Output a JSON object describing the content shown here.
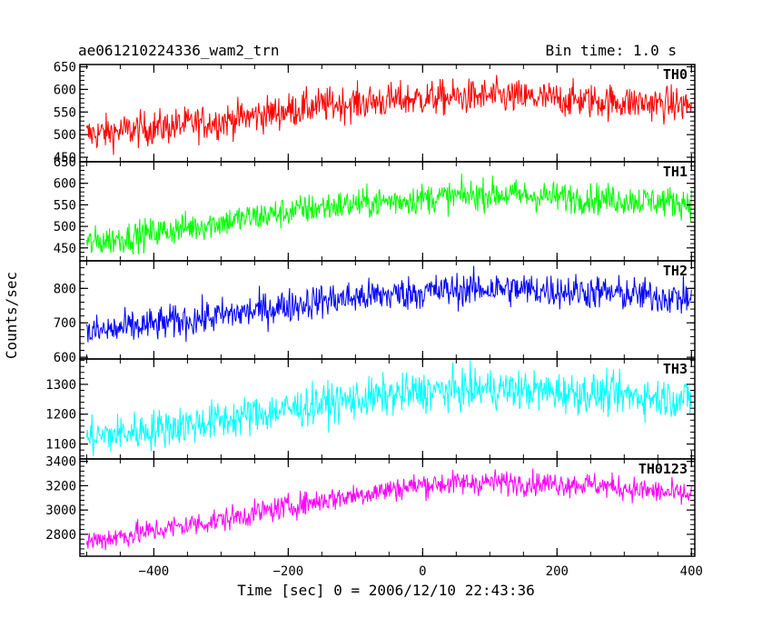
{
  "chart_data": {
    "type": "line",
    "title": "ae061210224336_wam2_trn",
    "subtitle": "Bin time: 1.0 s",
    "xlabel": "Time [sec] 0 = 2006/12/10 22:43:36",
    "ylabel": "Counts/sec",
    "xlim": [
      -510,
      405
    ],
    "x_ticks": [
      -400,
      -200,
      0,
      200,
      400
    ],
    "x_tick_labels": [
      "−400",
      "−200",
      "0",
      "200",
      "400"
    ],
    "x_range": [
      -500,
      400
    ],
    "bin_time_sec": 1.0,
    "panels": [
      {
        "name": "TH0",
        "color": "#ff0000",
        "ylim": [
          440,
          655
        ],
        "yticks": [
          450,
          500,
          550,
          600,
          650
        ],
        "trend": [
          [
            -500,
            500
          ],
          [
            -300,
            530
          ],
          [
            -150,
            565
          ],
          [
            0,
            580
          ],
          [
            100,
            585
          ],
          [
            250,
            575
          ],
          [
            400,
            565
          ]
        ],
        "noise_amplitude": 35
      },
      {
        "name": "TH1",
        "color": "#00ff00",
        "ylim": [
          420,
          650
        ],
        "yticks": [
          450,
          500,
          550,
          600,
          650
        ],
        "trend": [
          [
            -500,
            460
          ],
          [
            -300,
            510
          ],
          [
            -150,
            545
          ],
          [
            0,
            565
          ],
          [
            100,
            575
          ],
          [
            250,
            565
          ],
          [
            400,
            555
          ]
        ],
        "noise_amplitude": 32
      },
      {
        "name": "TH2",
        "color": "#0000ff",
        "ylim": [
          595,
          880
        ],
        "yticks": [
          600,
          700,
          800
        ],
        "trend": [
          [
            -500,
            670
          ],
          [
            -300,
            720
          ],
          [
            -150,
            765
          ],
          [
            0,
            790
          ],
          [
            100,
            800
          ],
          [
            250,
            790
          ],
          [
            400,
            770
          ]
        ],
        "noise_amplitude": 45
      },
      {
        "name": "TH3",
        "color": "#00ffff",
        "ylim": [
          1050,
          1385
        ],
        "yticks": [
          1100,
          1200,
          1300
        ],
        "trend": [
          [
            -500,
            1120
          ],
          [
            -300,
            1180
          ],
          [
            -150,
            1235
          ],
          [
            0,
            1275
          ],
          [
            100,
            1285
          ],
          [
            250,
            1270
          ],
          [
            400,
            1250
          ]
        ],
        "noise_amplitude": 60
      },
      {
        "name": "TH0123",
        "color": "#ff00ff",
        "ylim": [
          2620,
          3420
        ],
        "yticks": [
          2800,
          3000,
          3200,
          3400
        ],
        "trend": [
          [
            -500,
            2740
          ],
          [
            -300,
            2920
          ],
          [
            -150,
            3080
          ],
          [
            0,
            3210
          ],
          [
            100,
            3230
          ],
          [
            250,
            3210
          ],
          [
            400,
            3120
          ]
        ],
        "noise_amplitude": 90
      }
    ]
  }
}
